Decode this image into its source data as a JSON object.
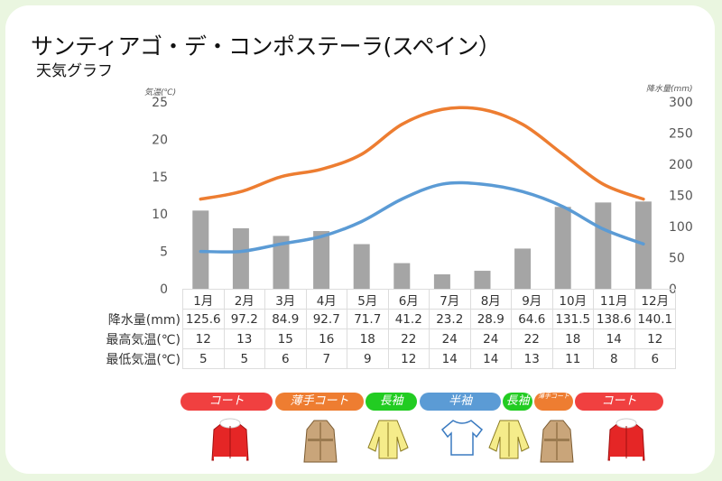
{
  "title": "サンティアゴ・デ・コンポステーラ(スペイン）",
  "subtitle": "天気グラフ",
  "chart_data": {
    "type": "bar+line",
    "categories": [
      "1月",
      "2月",
      "3月",
      "4月",
      "5月",
      "6月",
      "7月",
      "8月",
      "9月",
      "10月",
      "11月",
      "12月"
    ],
    "left_axis": {
      "label": "気温(℃)",
      "ylim": [
        0,
        25
      ],
      "ticks": [
        0,
        5,
        10,
        15,
        20,
        25
      ]
    },
    "right_axis": {
      "label": "降水量(mm)",
      "ylim": [
        0,
        300
      ],
      "ticks": [
        0,
        50,
        100,
        150,
        200,
        250,
        300
      ]
    },
    "series": [
      {
        "name": "降水量(mm)",
        "type": "bar",
        "axis": "right",
        "color": "#a5a5a5",
        "values": [
          125.6,
          97.2,
          84.9,
          92.7,
          71.7,
          41.2,
          23.2,
          28.9,
          64.6,
          131.5,
          138.6,
          140.1
        ]
      },
      {
        "name": "最高気温(℃)",
        "type": "line",
        "axis": "left",
        "color": "#ed7d31",
        "values": [
          12,
          13,
          15,
          16,
          18,
          22,
          24,
          24,
          22,
          18,
          14,
          12
        ]
      },
      {
        "name": "最低気温(℃)",
        "type": "line",
        "axis": "left",
        "color": "#5b9bd5",
        "values": [
          5,
          5,
          6,
          7,
          9,
          12,
          14,
          14,
          13,
          11,
          8,
          6
        ]
      }
    ],
    "grid": false
  },
  "clothing": [
    {
      "label": "コート",
      "color": "#f04040",
      "icon": "red-coat-icon"
    },
    {
      "label": "薄手コート",
      "color": "#ee7d31",
      "icon": "trench-coat-icon"
    },
    {
      "label": "長袖",
      "color": "#22cc22",
      "icon": "long-sleeve-icon"
    },
    {
      "label": "半袖",
      "color": "#5b9bd5",
      "icon": "t-shirt-icon"
    },
    {
      "label": "長袖",
      "color": "#22cc22",
      "icon": "long-sleeve-icon"
    },
    {
      "label": "薄手コート",
      "color": "#ee7d31",
      "icon": "trench-coat-icon"
    },
    {
      "label": "コート",
      "color": "#f04040",
      "icon": "red-coat-icon"
    }
  ]
}
